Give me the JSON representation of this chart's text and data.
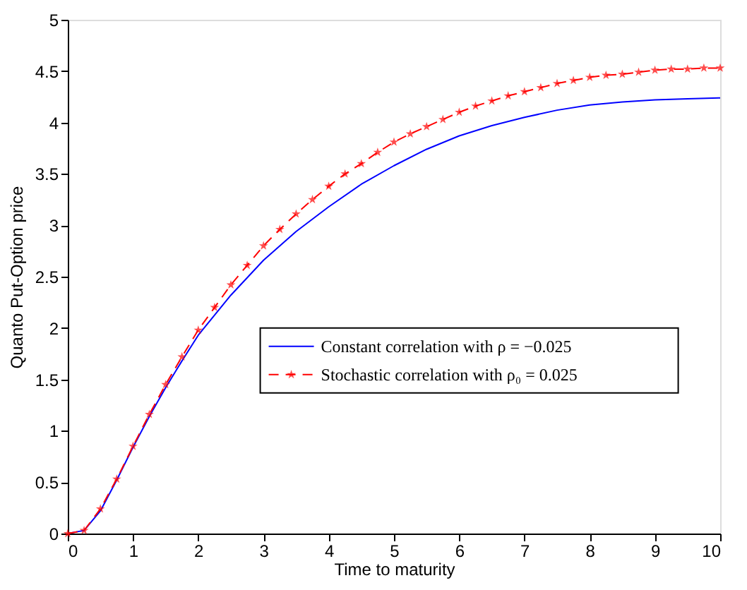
{
  "chart_data": {
    "type": "line",
    "xlabel": "Time to maturity",
    "ylabel": "Quanto Put-Option price",
    "xlim": [
      0,
      10
    ],
    "ylim": [
      0,
      5
    ],
    "xticks": [
      0,
      1,
      2,
      3,
      4,
      5,
      6,
      7,
      8,
      9,
      10
    ],
    "yticks": [
      0,
      0.5,
      1,
      1.5,
      2,
      2.5,
      3,
      3.5,
      4,
      4.5,
      5
    ],
    "grid": false,
    "legend": "right",
    "series": [
      {
        "name": "Constant correlation with ρ = −0.025",
        "color": "#0000ff",
        "line_style": "solid",
        "marker": "none",
        "x": [
          0,
          0.25,
          0.5,
          0.75,
          1,
          1.25,
          1.5,
          1.75,
          2,
          2.5,
          3,
          3.5,
          4,
          4.5,
          5,
          5.5,
          6,
          6.5,
          7,
          7.5,
          8,
          8.5,
          9,
          9.5,
          10
        ],
        "values": [
          0,
          0.03,
          0.22,
          0.52,
          0.84,
          1.14,
          1.42,
          1.68,
          1.93,
          2.32,
          2.66,
          2.94,
          3.18,
          3.4,
          3.58,
          3.74,
          3.87,
          3.97,
          4.05,
          4.12,
          4.17,
          4.2,
          4.22,
          4.23,
          4.24
        ]
      },
      {
        "name": "Stochastic correlation with ρ₀ = 0.025",
        "color": "#ff0000",
        "line_style": "dashed",
        "marker": "star",
        "x": [
          0,
          0.25,
          0.5,
          0.75,
          1,
          1.25,
          1.5,
          1.75,
          2,
          2.25,
          2.5,
          2.75,
          3,
          3.25,
          3.5,
          3.75,
          4,
          4.25,
          4.5,
          4.75,
          5,
          5.25,
          5.5,
          5.75,
          6,
          6.25,
          6.5,
          6.75,
          7,
          7.25,
          7.5,
          7.75,
          8,
          8.25,
          8.5,
          8.75,
          9,
          9.25,
          9.5,
          9.75,
          10
        ],
        "values": [
          0,
          0.03,
          0.24,
          0.53,
          0.85,
          1.16,
          1.45,
          1.72,
          1.98,
          2.2,
          2.42,
          2.61,
          2.8,
          2.96,
          3.11,
          3.25,
          3.38,
          3.5,
          3.6,
          3.71,
          3.81,
          3.89,
          3.96,
          4.03,
          4.1,
          4.16,
          4.21,
          4.26,
          4.3,
          4.34,
          4.38,
          4.41,
          4.44,
          4.46,
          4.47,
          4.49,
          4.51,
          4.52,
          4.52,
          4.53,
          4.53
        ]
      }
    ]
  }
}
